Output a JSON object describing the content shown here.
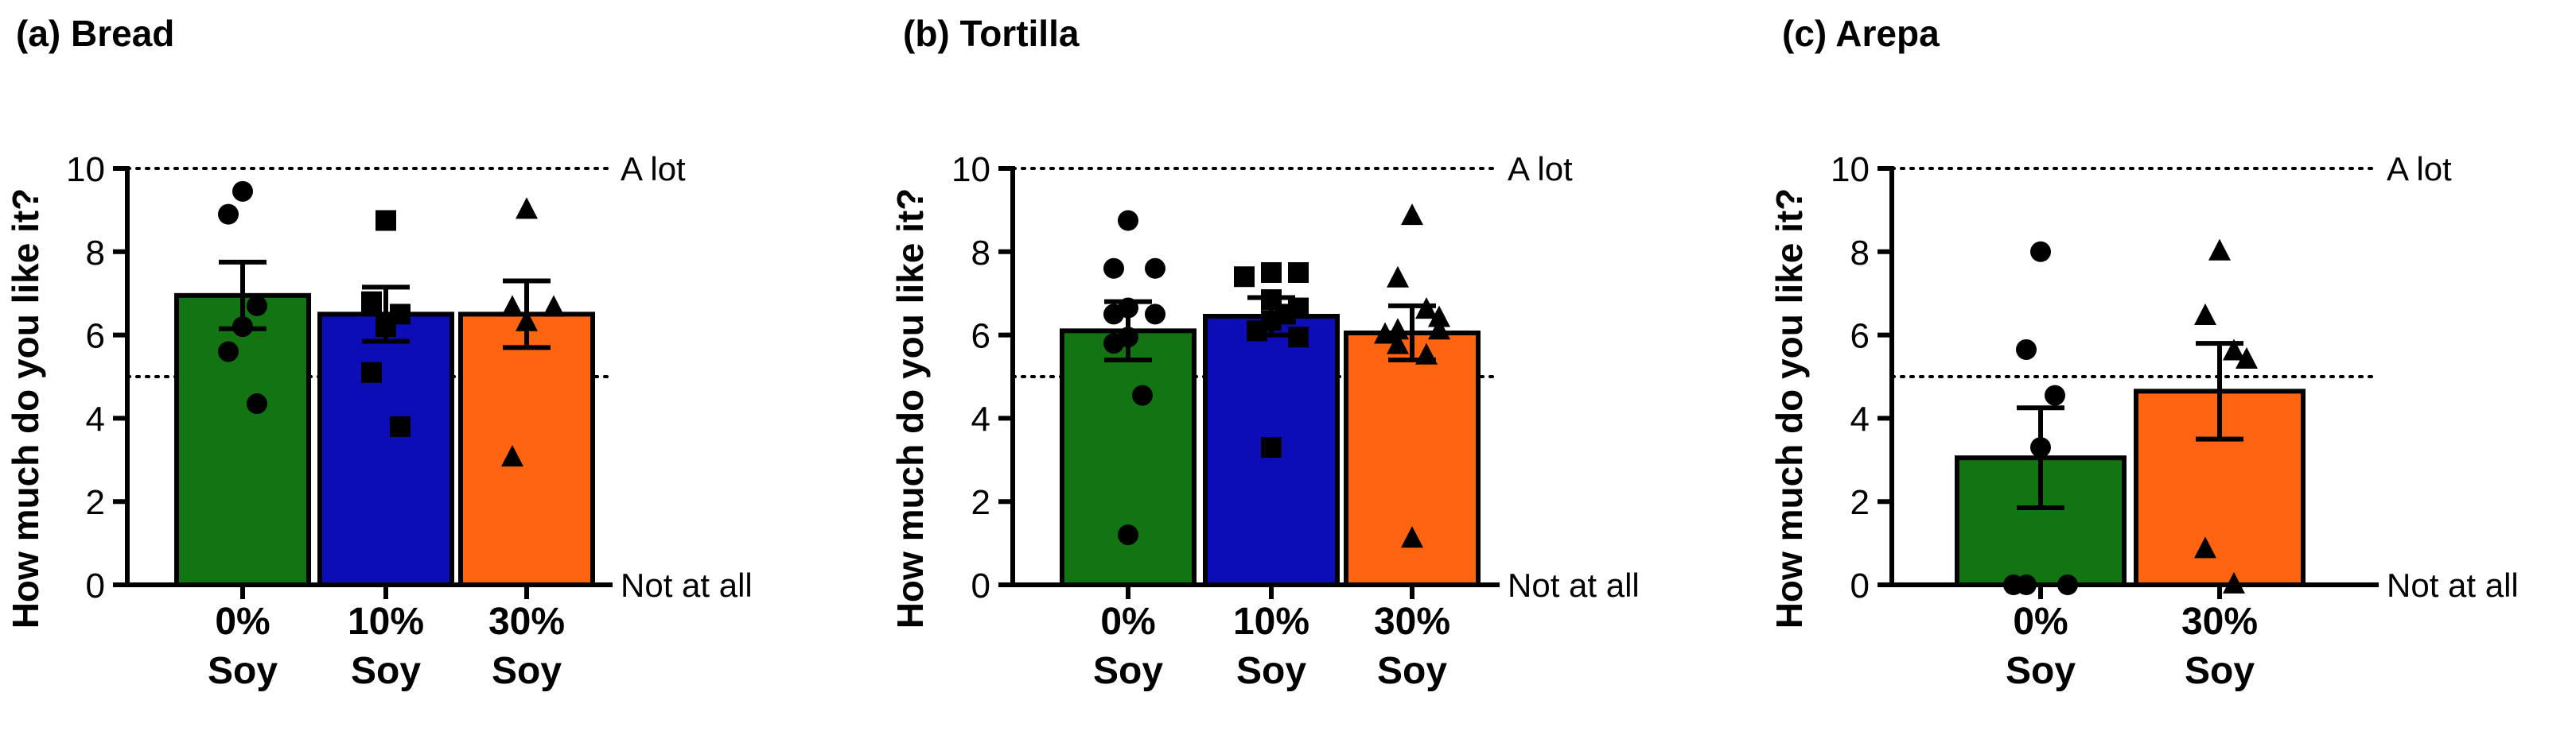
{
  "chart_data": [
    {
      "type": "bar",
      "title": "(a) Bread",
      "ylabel": "How much do you like it?",
      "xlabel": "",
      "ylim": [
        0,
        10
      ],
      "yticks": [
        0,
        2,
        4,
        6,
        8,
        10
      ],
      "categories": [
        {
          "line1": "0%",
          "line2": "Soy"
        },
        {
          "line1": "10%",
          "line2": "Soy"
        },
        {
          "line1": "30%",
          "line2": "Soy"
        }
      ],
      "values": [
        6.95,
        6.5,
        6.5
      ],
      "errors": [
        0.8,
        0.65,
        0.8
      ],
      "colors": [
        "#127512",
        "#0d0db8",
        "#ff6410"
      ],
      "markers": [
        "circle",
        "square",
        "triangle"
      ],
      "points": [
        [
          9.45,
          8.9,
          6.7,
          6.2,
          5.6,
          4.35
        ],
        [
          8.75,
          6.8,
          6.5,
          6.2,
          5.1,
          3.8
        ],
        [
          9.0,
          6.65,
          6.65,
          6.3,
          3.05
        ]
      ],
      "reference_lines": [
        {
          "y": 10,
          "label": "A lot"
        },
        {
          "y": 5,
          "label": ""
        },
        {
          "y": 0,
          "label": "Not at all"
        }
      ]
    },
    {
      "type": "bar",
      "title": "(b) Tortilla",
      "ylabel": "How much do you like it?",
      "xlabel": "",
      "ylim": [
        0,
        10
      ],
      "yticks": [
        0,
        2,
        4,
        6,
        8,
        10
      ],
      "categories": [
        {
          "line1": "0%",
          "line2": "Soy"
        },
        {
          "line1": "10%",
          "line2": "Soy"
        },
        {
          "line1": "30%",
          "line2": "Soy"
        }
      ],
      "values": [
        6.1,
        6.45,
        6.05
      ],
      "errors": [
        0.7,
        0.45,
        0.65
      ],
      "colors": [
        "#127512",
        "#0d0db8",
        "#ff6410"
      ],
      "markers": [
        "circle",
        "square",
        "triangle"
      ],
      "points": [
        [
          8.75,
          7.6,
          7.6,
          6.65,
          6.5,
          6.5,
          5.95,
          5.8,
          4.55,
          1.2
        ],
        [
          7.5,
          7.5,
          7.4,
          6.85,
          6.65,
          6.5,
          6.35,
          6.1,
          5.95,
          3.3
        ],
        [
          8.85,
          7.35,
          6.6,
          6.4,
          6.1,
          6.1,
          6.0,
          5.75,
          5.5,
          1.1
        ]
      ],
      "reference_lines": [
        {
          "y": 10,
          "label": "A lot"
        },
        {
          "y": 5,
          "label": ""
        },
        {
          "y": 0,
          "label": "Not at all"
        }
      ]
    },
    {
      "type": "bar",
      "title": "(c) Arepa",
      "ylabel": "How much do you like it?",
      "xlabel": "",
      "ylim": [
        0,
        10
      ],
      "yticks": [
        0,
        2,
        4,
        6,
        8,
        10
      ],
      "categories": [
        {
          "line1": "0%",
          "line2": "Soy"
        },
        {
          "line1": "30%",
          "line2": "Soy"
        }
      ],
      "values": [
        3.05,
        4.65
      ],
      "errors": [
        1.2,
        1.15
      ],
      "colors": [
        "#127512",
        "#ff6410"
      ],
      "markers": [
        "circle",
        "triangle"
      ],
      "points": [
        [
          8.0,
          5.65,
          4.55,
          3.3,
          0,
          0,
          0
        ],
        [
          8.0,
          6.45,
          5.6,
          5.4,
          0.85,
          0
        ]
      ],
      "reference_lines": [
        {
          "y": 10,
          "label": "A lot"
        },
        {
          "y": 5,
          "label": ""
        },
        {
          "y": 0,
          "label": "Not at all"
        }
      ]
    }
  ]
}
